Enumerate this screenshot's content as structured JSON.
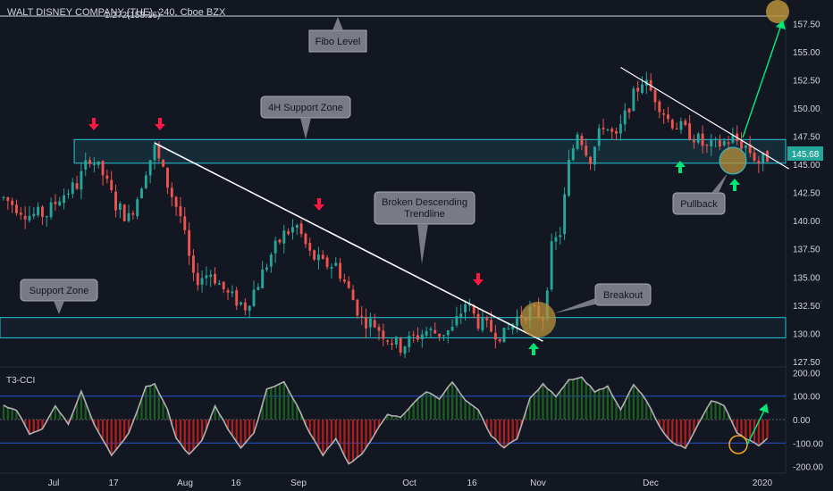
{
  "symbol": {
    "text": "WALT DISNEY COMPANY (THE), 240, Cboe BZX"
  },
  "fibo_label": "1.272(158.16)",
  "price_badge": "145.68",
  "oscillator_label": "T3-CCI",
  "annotations": {
    "fibo": "Fibo Level",
    "support4h": "4H Support Zone",
    "broken_line1": "Broken Descending",
    "broken_line2": "Trendline",
    "support": "Support Zone",
    "breakout": "Breakout",
    "pullback": "Pullback"
  },
  "colors": {
    "background": "#131722",
    "up": "#26a69a",
    "down": "#ef5350",
    "zone": "#26c6da",
    "trendline": "#ffffff",
    "projection": "#00e676",
    "marker_fill": "#b8923a",
    "cci_line": "#b0b0b0",
    "cci_pos": "#1b5e20",
    "cci_neg": "#b71c1c",
    "level_line": "#2962ff",
    "callout": "#787b86"
  },
  "chart_data": {
    "type": "candlestick",
    "x_ticks": [
      "Jul",
      "17",
      "Aug",
      "16",
      "Sep",
      "Oct",
      "16",
      "Nov",
      "Dec",
      "2020"
    ],
    "price_axis": {
      "ticks": [
        "157.50",
        "155.00",
        "152.50",
        "150.00",
        "147.50",
        "145.00",
        "142.50",
        "140.00",
        "137.50",
        "135.00",
        "132.50",
        "130.00",
        "127.50"
      ],
      "range": [
        126,
        159
      ]
    },
    "fibo_level": 158.16,
    "last_price": 145.68,
    "zones": {
      "support_4h": [
        145.1,
        147.2
      ],
      "support": [
        129.6,
        131.4
      ]
    },
    "price_path": [
      {
        "i": 0,
        "p": 142.0
      },
      {
        "i": 6,
        "p": 140.5
      },
      {
        "i": 10,
        "p": 140.6
      },
      {
        "i": 13,
        "p": 142.1
      },
      {
        "i": 17,
        "p": 143.2
      },
      {
        "i": 20,
        "p": 145.7
      },
      {
        "i": 23,
        "p": 144.1
      },
      {
        "i": 26,
        "p": 141.4
      },
      {
        "i": 29,
        "p": 140.2
      },
      {
        "i": 31,
        "p": 142.1
      },
      {
        "i": 33,
        "p": 144.6
      },
      {
        "i": 35,
        "p": 146.4
      },
      {
        "i": 38,
        "p": 143.2
      },
      {
        "i": 41,
        "p": 140.4
      },
      {
        "i": 44,
        "p": 134.7
      },
      {
        "i": 48,
        "p": 135.4
      },
      {
        "i": 52,
        "p": 133.4
      },
      {
        "i": 56,
        "p": 132.4
      },
      {
        "i": 59,
        "p": 134.5
      },
      {
        "i": 62,
        "p": 137.0
      },
      {
        "i": 65,
        "p": 138.8
      },
      {
        "i": 68,
        "p": 139.5
      },
      {
        "i": 71,
        "p": 137.0
      },
      {
        "i": 74,
        "p": 136.1
      },
      {
        "i": 77,
        "p": 136.1
      },
      {
        "i": 80,
        "p": 133.8
      },
      {
        "i": 83,
        "p": 131.3
      },
      {
        "i": 86,
        "p": 130.8
      },
      {
        "i": 89,
        "p": 129.6
      },
      {
        "i": 92,
        "p": 128.8
      },
      {
        "i": 95,
        "p": 129.6
      },
      {
        "i": 98,
        "p": 130.2
      },
      {
        "i": 101,
        "p": 130.0
      },
      {
        "i": 104,
        "p": 130.3
      },
      {
        "i": 107,
        "p": 132.7
      },
      {
        "i": 110,
        "p": 131.0
      },
      {
        "i": 113,
        "p": 130.3
      },
      {
        "i": 116,
        "p": 129.8
      },
      {
        "i": 119,
        "p": 131.4
      },
      {
        "i": 122,
        "p": 132.0
      },
      {
        "i": 125,
        "p": 131.5
      },
      {
        "i": 127,
        "p": 137.5
      },
      {
        "i": 129,
        "p": 139.0
      },
      {
        "i": 131,
        "p": 145.0
      },
      {
        "i": 133,
        "p": 148.0
      },
      {
        "i": 136,
        "p": 145.5
      },
      {
        "i": 139,
        "p": 148.6
      },
      {
        "i": 142,
        "p": 147.2
      },
      {
        "i": 145,
        "p": 150.3
      },
      {
        "i": 148,
        "p": 152.5
      },
      {
        "i": 151,
        "p": 151.0
      },
      {
        "i": 154,
        "p": 149.0
      },
      {
        "i": 157,
        "p": 148.2
      },
      {
        "i": 160,
        "p": 147.5
      },
      {
        "i": 163,
        "p": 146.4
      },
      {
        "i": 166,
        "p": 146.8
      },
      {
        "i": 169,
        "p": 147.3
      },
      {
        "i": 172,
        "p": 146.6
      },
      {
        "i": 175,
        "p": 145.2
      },
      {
        "i": 177,
        "p": 145.68
      }
    ],
    "trendlines": [
      {
        "from": [
          35,
          146.9
        ],
        "to": [
          125,
          129.3
        ]
      },
      {
        "from": [
          143,
          153.6
        ],
        "to": [
          182,
          144.6
        ]
      }
    ],
    "cci": {
      "range": [
        -200,
        200
      ],
      "ticks": [
        "200.00",
        "100.00",
        "0.00",
        "-100.00",
        "-200.00"
      ],
      "levels": [
        100,
        -100
      ],
      "path": [
        {
          "i": 0,
          "v": 60
        },
        {
          "i": 3,
          "v": 40
        },
        {
          "i": 6,
          "v": -60
        },
        {
          "i": 9,
          "v": -40
        },
        {
          "i": 12,
          "v": 60
        },
        {
          "i": 15,
          "v": -20
        },
        {
          "i": 18,
          "v": 120
        },
        {
          "i": 21,
          "v": -20
        },
        {
          "i": 25,
          "v": -150
        },
        {
          "i": 29,
          "v": -60
        },
        {
          "i": 33,
          "v": 140
        },
        {
          "i": 35,
          "v": 150
        },
        {
          "i": 38,
          "v": 40
        },
        {
          "i": 40,
          "v": -80
        },
        {
          "i": 43,
          "v": -150
        },
        {
          "i": 46,
          "v": -90
        },
        {
          "i": 49,
          "v": 60
        },
        {
          "i": 52,
          "v": -40
        },
        {
          "i": 55,
          "v": -120
        },
        {
          "i": 58,
          "v": -60
        },
        {
          "i": 61,
          "v": 130
        },
        {
          "i": 65,
          "v": 160
        },
        {
          "i": 68,
          "v": 60
        },
        {
          "i": 71,
          "v": -60
        },
        {
          "i": 74,
          "v": -150
        },
        {
          "i": 77,
          "v": -80
        },
        {
          "i": 80,
          "v": -190
        },
        {
          "i": 83,
          "v": -150
        },
        {
          "i": 86,
          "v": -60
        },
        {
          "i": 89,
          "v": 20
        },
        {
          "i": 92,
          "v": 10
        },
        {
          "i": 95,
          "v": 70
        },
        {
          "i": 98,
          "v": 120
        },
        {
          "i": 101,
          "v": 90
        },
        {
          "i": 104,
          "v": 160
        },
        {
          "i": 107,
          "v": 80
        },
        {
          "i": 110,
          "v": 40
        },
        {
          "i": 113,
          "v": -70
        },
        {
          "i": 116,
          "v": -120
        },
        {
          "i": 119,
          "v": -80
        },
        {
          "i": 122,
          "v": 90
        },
        {
          "i": 125,
          "v": 150
        },
        {
          "i": 128,
          "v": 100
        },
        {
          "i": 131,
          "v": 170
        },
        {
          "i": 134,
          "v": 180
        },
        {
          "i": 137,
          "v": 120
        },
        {
          "i": 140,
          "v": 140
        },
        {
          "i": 143,
          "v": 40
        },
        {
          "i": 146,
          "v": 150
        },
        {
          "i": 149,
          "v": 80
        },
        {
          "i": 152,
          "v": -30
        },
        {
          "i": 155,
          "v": -100
        },
        {
          "i": 158,
          "v": -120
        },
        {
          "i": 161,
          "v": -20
        },
        {
          "i": 164,
          "v": 80
        },
        {
          "i": 167,
          "v": 60
        },
        {
          "i": 170,
          "v": -60
        },
        {
          "i": 173,
          "v": -90
        },
        {
          "i": 175,
          "v": -110
        },
        {
          "i": 177,
          "v": -80
        }
      ]
    }
  }
}
